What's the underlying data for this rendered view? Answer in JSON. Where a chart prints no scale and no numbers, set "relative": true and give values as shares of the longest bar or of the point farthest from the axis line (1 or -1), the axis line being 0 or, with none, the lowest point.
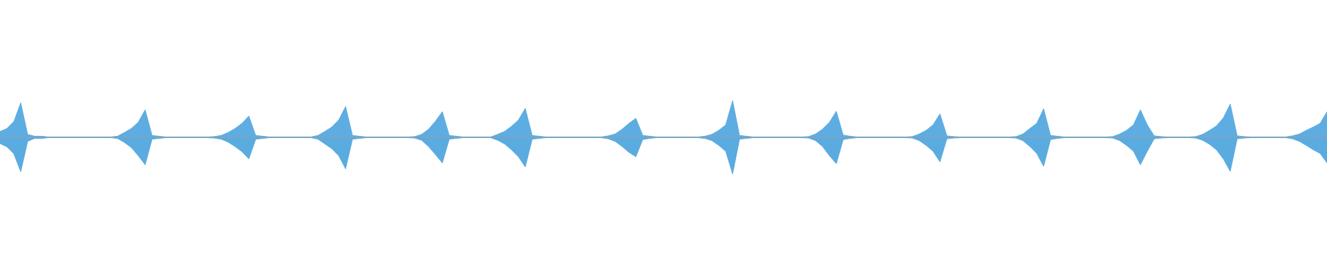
{
  "chart_data": {
    "type": "area",
    "relative": true,
    "categories": [
      null,
      null,
      null,
      null,
      null,
      null,
      null,
      null,
      null,
      null,
      null,
      null,
      null,
      null,
      null,
      null,
      null,
      null,
      null,
      null,
      null,
      null,
      null,
      null,
      null,
      null,
      null,
      null,
      null,
      null,
      null,
      null,
      null,
      null,
      null,
      null,
      null,
      null,
      null,
      null,
      null,
      null,
      null,
      null,
      null,
      null,
      null,
      null,
      null,
      null,
      null,
      null,
      null,
      null,
      null,
      null,
      null,
      null,
      null,
      null,
      null,
      null,
      null,
      null,
      null,
      null,
      null,
      null,
      null,
      null,
      null,
      null,
      null,
      null,
      null,
      null,
      null,
      null,
      null,
      null,
      null,
      null,
      null,
      null,
      null,
      null,
      null,
      null,
      null,
      null,
      null,
      null,
      null,
      null,
      null,
      null,
      null,
      null,
      null,
      null,
      null,
      null,
      null,
      null,
      null,
      null,
      null,
      null,
      null,
      null,
      null,
      null,
      null,
      null,
      null,
      null,
      null,
      null,
      null,
      null,
      null,
      null,
      null,
      null,
      null,
      null,
      null,
      null,
      null,
      null,
      null,
      null,
      null,
      null,
      null,
      null,
      null,
      null,
      null,
      null,
      null,
      null,
      null,
      null,
      null,
      null,
      null,
      null,
      null,
      null,
      null,
      null,
      null,
      null,
      null,
      null,
      null,
      null,
      null,
      null,
      null,
      null,
      null,
      null,
      null,
      null,
      null,
      null,
      null,
      null,
      null,
      null,
      null,
      null,
      null,
      null,
      null,
      null,
      null,
      null,
      null,
      null,
      null,
      null,
      null,
      null,
      null,
      null,
      null,
      null,
      null,
      null,
      null
    ],
    "series": [
      {
        "color": "#5dade2",
        "values": [
          0.16,
          0.24,
          0.43,
          0.94,
          0.08,
          0.03,
          0.03,
          0.01,
          0.01,
          0.01,
          0.01,
          0.01,
          0.01,
          0.01,
          0.01,
          0.01,
          0.01,
          0.03,
          0.13,
          0.24,
          0.41,
          0.75,
          0.05,
          0.03,
          0.01,
          0.01,
          0.01,
          0.01,
          0.01,
          0.01,
          0.01,
          0.02,
          0.05,
          0.13,
          0.24,
          0.38,
          0.58,
          0.05,
          0.03,
          0.01,
          0.01,
          0.01,
          0.01,
          0.01,
          0.01,
          0.01,
          0.05,
          0.16,
          0.28,
          0.47,
          0.84,
          0.05,
          0.03,
          0.01,
          0.01,
          0.01,
          0.01,
          0.01,
          0.01,
          0.01,
          0.02,
          0.08,
          0.22,
          0.44,
          0.7,
          0.05,
          0.03,
          0.01,
          0.01,
          0.01,
          0.01,
          0.01,
          0.08,
          0.16,
          0.3,
          0.47,
          0.79,
          0.05,
          0.03,
          0.01,
          0.01,
          0.01,
          0.01,
          0.01,
          0.01,
          0.01,
          0.01,
          0.01,
          0.04,
          0.09,
          0.22,
          0.38,
          0.52,
          0.05,
          0.03,
          0.01,
          0.01,
          0.01,
          0.01,
          0.01,
          0.01,
          0.01,
          0.03,
          0.08,
          0.19,
          0.34,
          1,
          0.05,
          0.03,
          0.01,
          0.01,
          0.01,
          0.01,
          0.01,
          0.01,
          0.01,
          0.01,
          0.02,
          0.09,
          0.22,
          0.41,
          0.71,
          0.06,
          0.03,
          0.01,
          0.01,
          0.01,
          0.01,
          0.01,
          0.01,
          0.01,
          0.01,
          0.02,
          0.09,
          0.19,
          0.34,
          0.64,
          0.04,
          0.02,
          0.01,
          0.01,
          0.01,
          0.01,
          0.01,
          0.01,
          0.01,
          0.01,
          0.02,
          0.09,
          0.24,
          0.38,
          0.78,
          0.05,
          0.03,
          0.01,
          0.01,
          0.01,
          0.01,
          0.01,
          0.01,
          0.01,
          0.02,
          0.09,
          0.19,
          0.34,
          0.75,
          0.34,
          0.04,
          0.02,
          0.01,
          0.01,
          0.01,
          0.01,
          0.02,
          0.08,
          0.19,
          0.31,
          0.53,
          0.91,
          0.04,
          0.02,
          0.01,
          0.01,
          0.01,
          0.01,
          0.01,
          0.01,
          0.04,
          0.09,
          0.19,
          0.28,
          0.38,
          0.7
        ]
      },
      {
        "color": "#5aabe0",
        "values": [
          -0.17,
          -0.26,
          -0.45,
          -0.94,
          -0.11,
          -0.03,
          -0.03,
          -0.01,
          -0.01,
          -0.01,
          -0.01,
          -0.01,
          -0.01,
          -0.01,
          -0.01,
          -0.01,
          -0.01,
          -0.03,
          -0.14,
          -0.28,
          -0.5,
          -0.75,
          -0.05,
          -0.03,
          -0.01,
          -0.01,
          -0.01,
          -0.01,
          -0.01,
          -0.01,
          -0.01,
          -0.02,
          -0.05,
          -0.13,
          -0.25,
          -0.39,
          -0.59,
          -0.05,
          -0.03,
          -0.01,
          -0.01,
          -0.01,
          -0.01,
          -0.01,
          -0.01,
          -0.01,
          -0.05,
          -0.18,
          -0.31,
          -0.5,
          -0.86,
          -0.05,
          -0.03,
          -0.01,
          -0.01,
          -0.01,
          -0.01,
          -0.01,
          -0.01,
          -0.01,
          -0.02,
          -0.08,
          -0.25,
          -0.47,
          -0.7,
          -0.05,
          -0.03,
          -0.01,
          -0.01,
          -0.01,
          -0.01,
          -0.01,
          -0.08,
          -0.18,
          -0.34,
          -0.53,
          -0.81,
          -0.05,
          -0.03,
          -0.01,
          -0.01,
          -0.01,
          -0.01,
          -0.01,
          -0.01,
          -0.01,
          -0.01,
          -0.01,
          -0.04,
          -0.11,
          -0.25,
          -0.41,
          -0.53,
          -0.06,
          -0.03,
          -0.01,
          -0.01,
          -0.01,
          -0.01,
          -0.01,
          -0.01,
          -0.01,
          -0.03,
          -0.09,
          -0.22,
          -0.38,
          -1,
          -0.05,
          -0.03,
          -0.01,
          -0.01,
          -0.01,
          -0.01,
          -0.01,
          -0.01,
          -0.01,
          -0.01,
          -0.02,
          -0.09,
          -0.25,
          -0.5,
          -0.72,
          -0.06,
          -0.03,
          -0.01,
          -0.01,
          -0.01,
          -0.01,
          -0.01,
          -0.01,
          -0.01,
          -0.01,
          -0.02,
          -0.09,
          -0.22,
          -0.38,
          -0.67,
          -0.04,
          -0.02,
          -0.01,
          -0.01,
          -0.01,
          -0.01,
          -0.01,
          -0.01,
          -0.01,
          -0.01,
          -0.02,
          -0.09,
          -0.25,
          -0.44,
          -0.79,
          -0.06,
          -0.03,
          -0.01,
          -0.01,
          -0.01,
          -0.01,
          -0.01,
          -0.01,
          -0.01,
          -0.02,
          -0.09,
          -0.22,
          -0.38,
          -0.75,
          -0.38,
          -0.04,
          -0.02,
          -0.01,
          -0.01,
          -0.01,
          -0.01,
          -0.02,
          -0.08,
          -0.19,
          -0.34,
          -0.59,
          -0.93,
          -0.04,
          -0.02,
          -0.01,
          -0.01,
          -0.01,
          -0.01,
          -0.01,
          -0.01,
          -0.04,
          -0.11,
          -0.22,
          -0.34,
          -0.44,
          -0.7
        ]
      }
    ]
  }
}
